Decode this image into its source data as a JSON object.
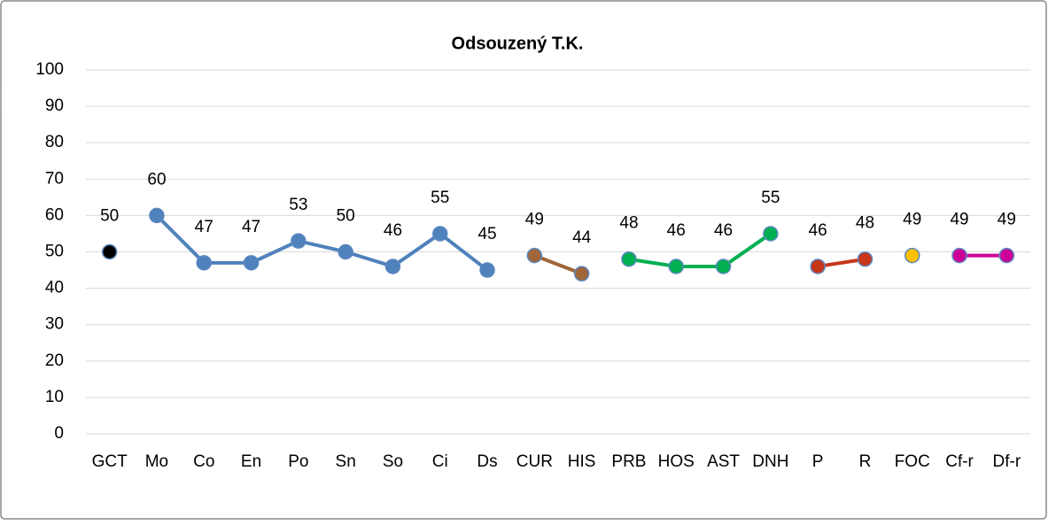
{
  "chart_data": {
    "type": "line",
    "title": "Odsouzený T.K.",
    "categories": [
      "GCT",
      "Mo",
      "Co",
      "En",
      "Po",
      "Sn",
      "So",
      "Ci",
      "Ds",
      "CUR",
      "HIS",
      "PRB",
      "HOS",
      "AST",
      "DNH",
      "P",
      "R",
      "FOC",
      "Cf-r",
      "Df-r"
    ],
    "series": [
      {
        "color": "#000000",
        "values": [
          50,
          null,
          null,
          null,
          null,
          null,
          null,
          null,
          null,
          null,
          null,
          null,
          null,
          null,
          null,
          null,
          null,
          null,
          null,
          null
        ]
      },
      {
        "color": "#4f81bd",
        "values": [
          null,
          60,
          47,
          47,
          53,
          50,
          46,
          55,
          45,
          null,
          null,
          null,
          null,
          null,
          null,
          null,
          null,
          null,
          null,
          null
        ]
      },
      {
        "color": "#a0663a",
        "values": [
          null,
          null,
          null,
          null,
          null,
          null,
          null,
          null,
          null,
          49,
          44,
          null,
          null,
          null,
          null,
          null,
          null,
          null,
          null,
          null
        ]
      },
      {
        "color": "#00b050",
        "values": [
          null,
          null,
          null,
          null,
          null,
          null,
          null,
          null,
          null,
          null,
          null,
          48,
          46,
          46,
          55,
          null,
          null,
          null,
          null,
          null
        ]
      },
      {
        "color": "#c8361a",
        "values": [
          null,
          null,
          null,
          null,
          null,
          null,
          null,
          null,
          null,
          null,
          null,
          null,
          null,
          null,
          null,
          46,
          48,
          null,
          null,
          null
        ]
      },
      {
        "color": "#ffc000",
        "values": [
          null,
          null,
          null,
          null,
          null,
          null,
          null,
          null,
          null,
          null,
          null,
          null,
          null,
          null,
          null,
          null,
          null,
          49,
          null,
          null
        ]
      },
      {
        "color": "#cc0099",
        "values": [
          null,
          null,
          null,
          null,
          null,
          null,
          null,
          null,
          null,
          null,
          null,
          null,
          null,
          null,
          null,
          null,
          null,
          null,
          49,
          49
        ]
      }
    ],
    "ylim": [
      0,
      100
    ],
    "yticks": [
      0,
      10,
      20,
      30,
      40,
      50,
      60,
      70,
      80,
      90,
      100
    ],
    "grid": true
  }
}
